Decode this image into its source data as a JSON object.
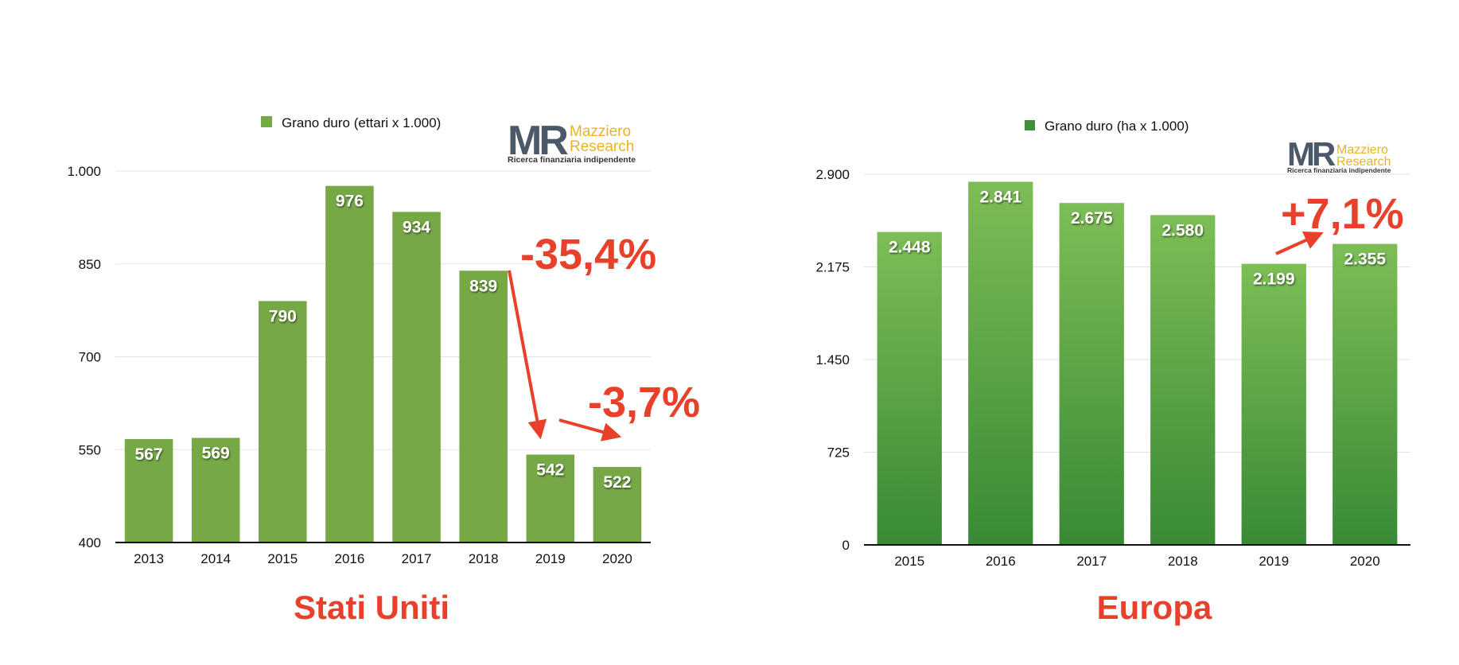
{
  "chart_data": [
    {
      "type": "bar",
      "panel": "left",
      "legend": "Grano duro (ettari x 1.000)",
      "legend_color": "#74a944",
      "caption": "Stati Uniti",
      "categories": [
        "2013",
        "2014",
        "2015",
        "2016",
        "2017",
        "2018",
        "2019",
        "2020"
      ],
      "values": [
        567,
        569,
        790,
        976,
        934,
        839,
        542,
        522
      ],
      "value_labels": [
        "567",
        "569",
        "790",
        "976",
        "934",
        "839",
        "542",
        "522"
      ],
      "yticks": [
        400,
        550,
        700,
        850,
        1000
      ],
      "ytick_labels": [
        "400",
        "550",
        "700",
        "850",
        "1.000"
      ],
      "ylim": [
        400,
        1000
      ],
      "grid": true,
      "legend_position": "top",
      "bar_color": "#76a946",
      "annotations": [
        "-35,4%",
        "-3,7%"
      ],
      "logo": {
        "mark": "MR",
        "name_line1": "Mazziero",
        "name_line2": "Research",
        "tagline": "Ricerca finanziaria indipendente"
      }
    },
    {
      "type": "bar",
      "panel": "right",
      "legend": "Grano duro (ha x 1.000)",
      "legend_color": "#3f8f3c",
      "caption": "Europa",
      "categories": [
        "2015",
        "2016",
        "2017",
        "2018",
        "2019",
        "2020"
      ],
      "values": [
        2448,
        2841,
        2675,
        2580,
        2199,
        2355
      ],
      "value_labels": [
        "2.448",
        "2.841",
        "2.675",
        "2.580",
        "2.199",
        "2.355"
      ],
      "yticks": [
        0,
        725,
        1450,
        2175,
        2900
      ],
      "ytick_labels": [
        "0",
        "725",
        "1.450",
        "2.175",
        "2.900"
      ],
      "ylim": [
        0,
        2900
      ],
      "grid": true,
      "legend_position": "top",
      "bar_gradient": [
        "#7dbd55",
        "#3a8a36"
      ],
      "annotations": [
        "+7,1%"
      ],
      "logo": {
        "mark": "MR",
        "name_line1": "Mazziero",
        "name_line2": "Research",
        "tagline": "Ricerca finanziaria indipendente"
      }
    }
  ],
  "colors": {
    "annotation": "#e8402a",
    "axis": "#111111",
    "grid": "#e3e3e3"
  }
}
